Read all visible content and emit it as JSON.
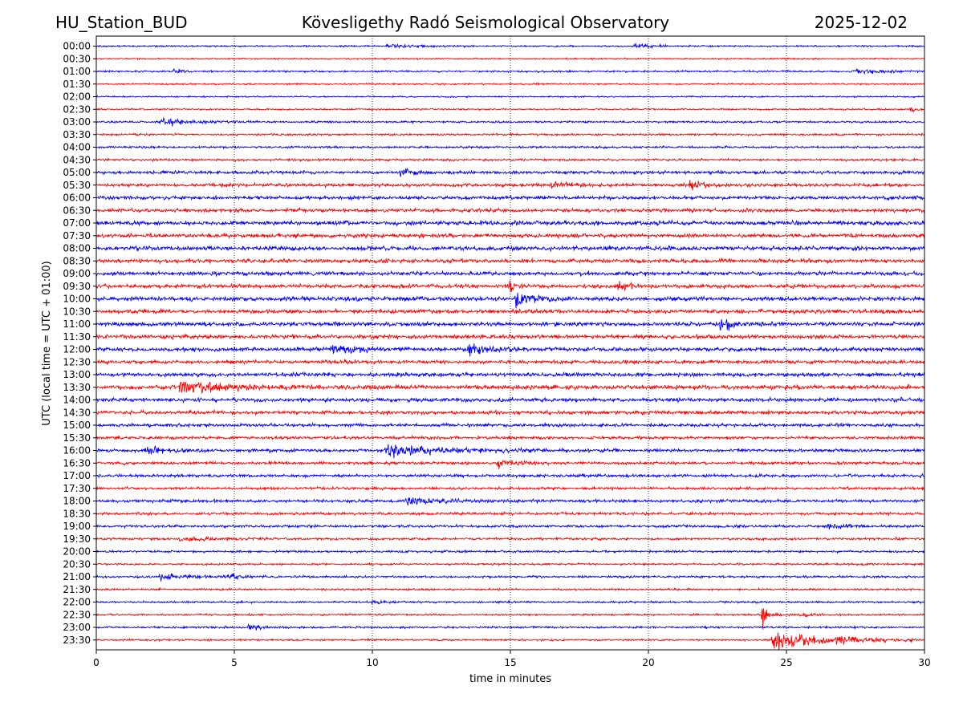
{
  "chart_data": {
    "type": "line",
    "title": "Kövesligethy Radó Seismological Observatory",
    "station": "HU_Station_BUD",
    "date": "2025-12-02",
    "xlabel": "time in minutes",
    "ylabel": "UTC (local time = UTC + 01:00)",
    "xlim": [
      0,
      30
    ],
    "x_ticks": [
      0,
      5,
      10,
      15,
      20,
      25,
      30
    ],
    "grid_x": true,
    "colors": [
      "#0000ff",
      "#ff0000"
    ],
    "rows": [
      {
        "label": "00:00",
        "noise": 0.25,
        "events": [
          {
            "t": 10.5,
            "amp": 2.5,
            "dur": 1.5
          },
          {
            "t": 19.5,
            "amp": 2.0,
            "dur": 1.2
          }
        ]
      },
      {
        "label": "00:30",
        "noise": 0.22,
        "events": []
      },
      {
        "label": "01:00",
        "noise": 0.28,
        "events": [
          {
            "t": 2.8,
            "amp": 3.0,
            "dur": 0.4
          },
          {
            "t": 27.5,
            "amp": 3.0,
            "dur": 1.5
          }
        ]
      },
      {
        "label": "01:30",
        "noise": 0.24,
        "events": []
      },
      {
        "label": "02:00",
        "noise": 0.22,
        "events": []
      },
      {
        "label": "02:30",
        "noise": 0.25,
        "events": [
          {
            "t": 29.5,
            "amp": 2.5,
            "dur": 0.8
          }
        ]
      },
      {
        "label": "03:00",
        "noise": 0.3,
        "events": [
          {
            "t": 2.3,
            "amp": 4.0,
            "dur": 1.8
          }
        ]
      },
      {
        "label": "03:30",
        "noise": 0.3,
        "events": []
      },
      {
        "label": "04:00",
        "noise": 0.33,
        "events": []
      },
      {
        "label": "04:30",
        "noise": 0.35,
        "events": []
      },
      {
        "label": "05:00",
        "noise": 0.5,
        "events": [
          {
            "t": 11.0,
            "amp": 2.5,
            "dur": 0.8
          }
        ]
      },
      {
        "label": "05:30",
        "noise": 0.5,
        "events": [
          {
            "t": 16.5,
            "amp": 3.0,
            "dur": 0.8
          },
          {
            "t": 21.5,
            "amp": 3.0,
            "dur": 0.8
          }
        ]
      },
      {
        "label": "06:00",
        "noise": 0.55,
        "events": []
      },
      {
        "label": "06:30",
        "noise": 0.55,
        "events": []
      },
      {
        "label": "07:00",
        "noise": 0.65,
        "events": []
      },
      {
        "label": "07:30",
        "noise": 0.6,
        "events": []
      },
      {
        "label": "08:00",
        "noise": 0.65,
        "events": []
      },
      {
        "label": "08:30",
        "noise": 0.6,
        "events": []
      },
      {
        "label": "09:00",
        "noise": 0.6,
        "events": []
      },
      {
        "label": "09:30",
        "noise": 0.6,
        "events": [
          {
            "t": 15.0,
            "amp": 4.0,
            "dur": 0.3
          },
          {
            "t": 18.8,
            "amp": 4.0,
            "dur": 0.5
          }
        ]
      },
      {
        "label": "10:00",
        "noise": 0.65,
        "events": [
          {
            "t": 15.2,
            "amp": 5.0,
            "dur": 0.8
          }
        ]
      },
      {
        "label": "10:30",
        "noise": 0.6,
        "events": []
      },
      {
        "label": "11:00",
        "noise": 0.6,
        "events": [
          {
            "t": 22.6,
            "amp": 4.0,
            "dur": 0.8
          }
        ]
      },
      {
        "label": "11:30",
        "noise": 0.6,
        "events": []
      },
      {
        "label": "12:00",
        "noise": 0.6,
        "events": [
          {
            "t": 8.5,
            "amp": 3.0,
            "dur": 1.2
          },
          {
            "t": 13.5,
            "amp": 4.0,
            "dur": 1.2
          }
        ]
      },
      {
        "label": "12:30",
        "noise": 0.55,
        "events": []
      },
      {
        "label": "13:00",
        "noise": 0.6,
        "events": []
      },
      {
        "label": "13:30",
        "noise": 0.65,
        "events": [
          {
            "t": 3.0,
            "amp": 3.0,
            "dur": 3.0
          }
        ]
      },
      {
        "label": "14:00",
        "noise": 0.6,
        "events": []
      },
      {
        "label": "14:30",
        "noise": 0.55,
        "events": []
      },
      {
        "label": "15:00",
        "noise": 0.5,
        "events": []
      },
      {
        "label": "15:30",
        "noise": 0.45,
        "events": []
      },
      {
        "label": "16:00",
        "noise": 0.5,
        "events": [
          {
            "t": 1.8,
            "amp": 3.0,
            "dur": 0.8
          },
          {
            "t": 10.5,
            "amp": 4.0,
            "dur": 3.0
          }
        ]
      },
      {
        "label": "16:30",
        "noise": 0.45,
        "events": [
          {
            "t": 14.5,
            "amp": 4.0,
            "dur": 1.0
          }
        ]
      },
      {
        "label": "17:00",
        "noise": 0.45,
        "events": []
      },
      {
        "label": "17:30",
        "noise": 0.4,
        "events": [
          {
            "t": 29.9,
            "amp": 3.0,
            "dur": 0.3
          }
        ]
      },
      {
        "label": "18:00",
        "noise": 0.45,
        "events": [
          {
            "t": 11.2,
            "amp": 3.5,
            "dur": 1.8
          }
        ]
      },
      {
        "label": "18:30",
        "noise": 0.4,
        "events": []
      },
      {
        "label": "19:00",
        "noise": 0.4,
        "events": [
          {
            "t": 26.5,
            "amp": 2.5,
            "dur": 1.2
          }
        ]
      },
      {
        "label": "19:30",
        "noise": 0.35,
        "events": [
          {
            "t": 3.0,
            "amp": 2.0,
            "dur": 2.5
          }
        ]
      },
      {
        "label": "20:00",
        "noise": 0.33,
        "events": []
      },
      {
        "label": "20:30",
        "noise": 0.3,
        "events": []
      },
      {
        "label": "21:00",
        "noise": 0.35,
        "events": [
          {
            "t": 2.3,
            "amp": 3.0,
            "dur": 1.8
          },
          {
            "t": 4.8,
            "amp": 3.0,
            "dur": 0.5
          }
        ]
      },
      {
        "label": "21:30",
        "noise": 0.3,
        "events": []
      },
      {
        "label": "22:00",
        "noise": 0.3,
        "events": [
          {
            "t": 10.0,
            "amp": 2.5,
            "dur": 0.5
          }
        ]
      },
      {
        "label": "22:30",
        "noise": 0.28,
        "events": [
          {
            "t": 24.1,
            "amp": 14.0,
            "dur": 0.5
          },
          {
            "t": 25.5,
            "amp": 2.5,
            "dur": 0.6
          }
        ]
      },
      {
        "label": "23:00",
        "noise": 0.3,
        "events": [
          {
            "t": 5.5,
            "amp": 3.5,
            "dur": 0.6
          }
        ]
      },
      {
        "label": "23:30",
        "noise": 0.28,
        "events": [
          {
            "t": 24.5,
            "amp": 14.0,
            "dur": 2.5
          },
          {
            "t": 26.8,
            "amp": 2.5,
            "dur": 1.5
          }
        ]
      }
    ]
  }
}
